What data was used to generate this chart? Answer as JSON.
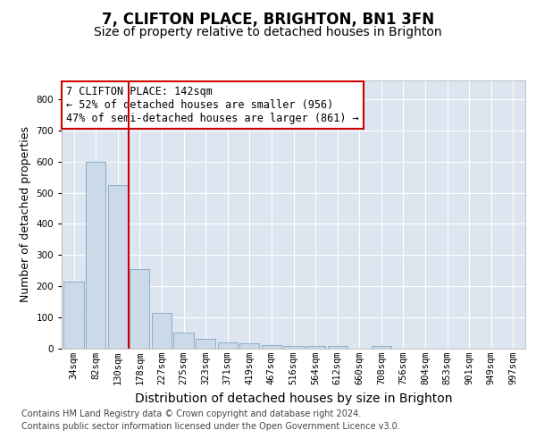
{
  "title_line1": "7, CLIFTON PLACE, BRIGHTON, BN1 3FN",
  "title_line2": "Size of property relative to detached houses in Brighton",
  "xlabel": "Distribution of detached houses by size in Brighton",
  "ylabel": "Number of detached properties",
  "categories": [
    "34sqm",
    "82sqm",
    "130sqm",
    "178sqm",
    "227sqm",
    "275sqm",
    "323sqm",
    "371sqm",
    "419sqm",
    "467sqm",
    "516sqm",
    "564sqm",
    "612sqm",
    "660sqm",
    "708sqm",
    "756sqm",
    "804sqm",
    "853sqm",
    "901sqm",
    "949sqm",
    "997sqm"
  ],
  "values": [
    215,
    598,
    525,
    255,
    116,
    52,
    32,
    20,
    16,
    11,
    10,
    10,
    10,
    0,
    10,
    0,
    0,
    0,
    0,
    0,
    0
  ],
  "bar_color": "#ccd9e8",
  "bar_edge_color": "#8aafc8",
  "highlight_color": "#cc0000",
  "annotation_line1": "7 CLIFTON PLACE: 142sqm",
  "annotation_line2": "← 52% of detached houses are smaller (956)",
  "annotation_line3": "47% of semi-detached houses are larger (861) →",
  "annotation_box_color": "#ffffff",
  "annotation_box_edge_color": "#cc0000",
  "ylim": [
    0,
    860
  ],
  "yticks": [
    0,
    100,
    200,
    300,
    400,
    500,
    600,
    700,
    800
  ],
  "background_color": "#dde5f0",
  "grid_color": "#ffffff",
  "footer_line1": "Contains HM Land Registry data © Crown copyright and database right 2024.",
  "footer_line2": "Contains public sector information licensed under the Open Government Licence v3.0.",
  "title_fontsize": 12,
  "subtitle_fontsize": 10,
  "ylabel_fontsize": 9,
  "xlabel_fontsize": 10,
  "tick_fontsize": 7.5,
  "annotation_fontsize": 8.5,
  "footer_fontsize": 7
}
